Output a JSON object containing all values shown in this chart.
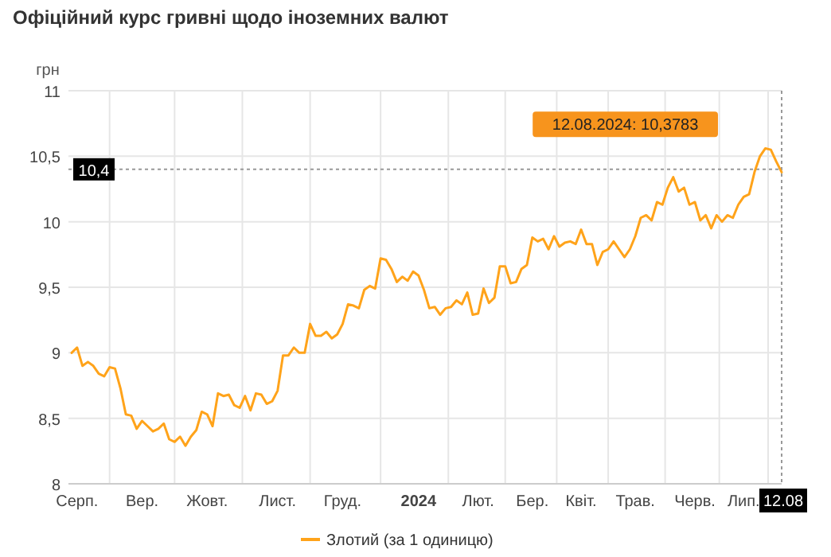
{
  "chart_data": {
    "type": "line",
    "title": "Офіційний курс гривні щодо іноземних валют",
    "ylabel": "грн",
    "categories": [
      null,
      "Серп.",
      null,
      null,
      null,
      null,
      null,
      null,
      null,
      null,
      null,
      null,
      null,
      "Вер.",
      null,
      null,
      null,
      null,
      null,
      null,
      null,
      null,
      null,
      null,
      null,
      "Жовт.",
      null,
      null,
      null,
      null,
      null,
      null,
      null,
      null,
      null,
      null,
      null,
      null,
      "Лист.",
      null,
      null,
      null,
      null,
      null,
      null,
      null,
      null,
      null,
      null,
      null,
      "Груд.",
      null,
      null,
      null,
      null,
      null,
      null,
      null,
      null,
      null,
      null,
      null,
      null,
      null,
      "2024",
      null,
      null,
      null,
      null,
      null,
      null,
      null,
      null,
      null,
      null,
      "Лют.",
      null,
      null,
      null,
      null,
      null,
      null,
      null,
      null,
      null,
      "Бер.",
      null,
      null,
      null,
      null,
      null,
      null,
      null,
      null,
      "Квіт.",
      null,
      null,
      null,
      null,
      null,
      null,
      null,
      null,
      null,
      "Трав.",
      null,
      null,
      null,
      null,
      null,
      null,
      null,
      null,
      null,
      null,
      "Черв.",
      null,
      null,
      null,
      null,
      null,
      null,
      null,
      null,
      "Лип.",
      null,
      null,
      null,
      null,
      null,
      null,
      "12.08"
    ],
    "series": [
      {
        "name": "Злотий (за 1 одиницю)",
        "color": "#ffa31a",
        "values": [
          9.0,
          9.04,
          8.9,
          8.93,
          8.9,
          8.84,
          8.82,
          8.89,
          8.88,
          8.73,
          8.53,
          8.52,
          8.42,
          8.48,
          8.44,
          8.4,
          8.42,
          8.46,
          8.34,
          8.32,
          8.36,
          8.29,
          8.36,
          8.41,
          8.55,
          8.53,
          8.44,
          8.69,
          8.67,
          8.68,
          8.6,
          8.58,
          8.67,
          8.56,
          8.69,
          8.68,
          8.61,
          8.63,
          8.71,
          8.98,
          8.98,
          9.04,
          9.0,
          9.0,
          9.22,
          9.13,
          9.13,
          9.16,
          9.11,
          9.14,
          9.22,
          9.37,
          9.36,
          9.34,
          9.48,
          9.51,
          9.49,
          9.72,
          9.71,
          9.64,
          9.54,
          9.58,
          9.55,
          9.62,
          9.59,
          9.48,
          9.34,
          9.35,
          9.29,
          9.34,
          9.35,
          9.4,
          9.37,
          9.46,
          9.29,
          9.3,
          9.49,
          9.38,
          9.42,
          9.66,
          9.66,
          9.53,
          9.54,
          9.64,
          9.67,
          9.88,
          9.85,
          9.87,
          9.79,
          9.89,
          9.81,
          9.84,
          9.85,
          9.83,
          9.94,
          9.83,
          9.83,
          9.67,
          9.77,
          9.79,
          9.85,
          9.79,
          9.73,
          9.79,
          9.89,
          10.03,
          10.05,
          10.01,
          10.15,
          10.13,
          10.26,
          10.34,
          10.23,
          10.26,
          10.13,
          10.15,
          10.01,
          10.05,
          9.95,
          10.05,
          10.0,
          10.05,
          10.03,
          10.13,
          10.19,
          10.21,
          10.38,
          10.5,
          10.56,
          10.55,
          10.46,
          10.3783
        ]
      }
    ],
    "ylim": [
      8,
      11
    ],
    "yticks": [
      8,
      {
        "value": 8.5,
        "label": "8,5"
      },
      9,
      {
        "value": 9.5,
        "label": "9,5"
      },
      10,
      {
        "value": 10.5,
        "label": "10,5"
      },
      11
    ],
    "ref_lines": [
      {
        "axis": "y",
        "value": 10.4,
        "label": "10,4",
        "line_style": "dotted"
      },
      {
        "axis": "x",
        "value": "12.08",
        "line_style": "dotted"
      }
    ],
    "annotations": [
      "12.08.2024: 10,3783"
    ],
    "grid": true,
    "legend": "bottom",
    "line_style": "solid",
    "marker": "none"
  }
}
